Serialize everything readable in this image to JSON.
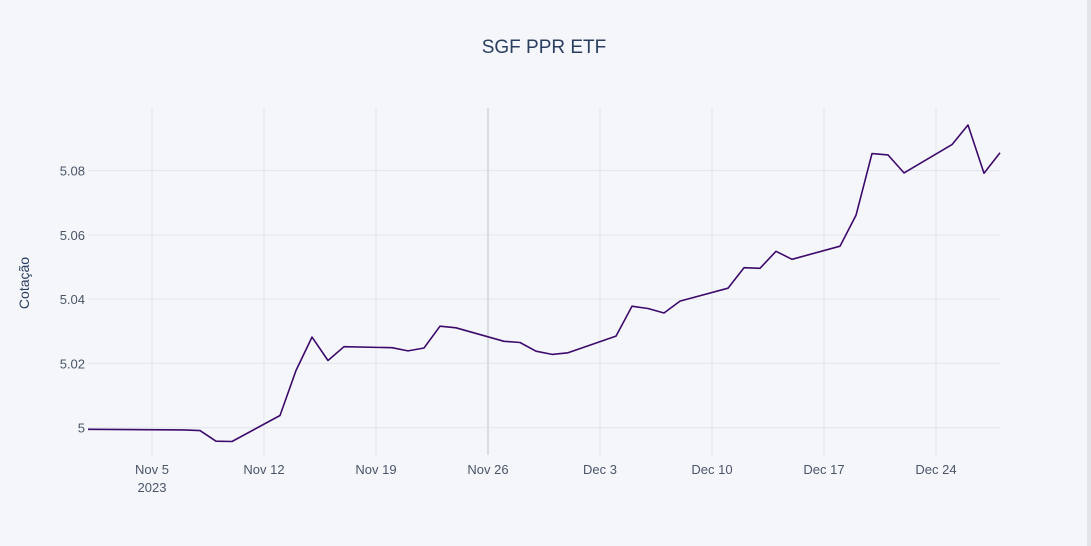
{
  "chart_data": {
    "type": "line",
    "title": "SGF PPR ETF",
    "xlabel": "",
    "ylabel": "Cotação",
    "x_tick_labels": [
      "Nov 5",
      "Nov 12",
      "Nov 19",
      "Nov 26",
      "Dec 3",
      "Dec 10",
      "Dec 17",
      "Dec 24"
    ],
    "x_tick_year_label": "2023",
    "x_tick_dates": [
      "2023-11-05",
      "2023-11-12",
      "2023-11-19",
      "2023-11-26",
      "2023-12-03",
      "2023-12-10",
      "2023-12-17",
      "2023-12-24"
    ],
    "y_tick_labels": [
      "5",
      "5.02",
      "5.04",
      "5.06",
      "5.08"
    ],
    "y_tick_values": [
      5.0,
      5.02,
      5.04,
      5.06,
      5.08
    ],
    "xlim": [
      "2023-11-01",
      "2023-12-28"
    ],
    "ylim": [
      4.9915,
      5.0995
    ],
    "grid": true,
    "legend": false,
    "line_color": "#3d0a6b",
    "series": [
      {
        "name": "",
        "x": [
          "2023-11-01",
          "2023-11-07",
          "2023-11-08",
          "2023-11-09",
          "2023-11-10",
          "2023-11-13",
          "2023-11-14",
          "2023-11-15",
          "2023-11-16",
          "2023-11-17",
          "2023-11-20",
          "2023-11-21",
          "2023-11-22",
          "2023-11-23",
          "2023-11-24",
          "2023-11-27",
          "2023-11-28",
          "2023-11-29",
          "2023-11-30",
          "2023-12-01",
          "2023-12-04",
          "2023-12-05",
          "2023-12-06",
          "2023-12-07",
          "2023-12-08",
          "2023-12-11",
          "2023-12-12",
          "2023-12-13",
          "2023-12-14",
          "2023-12-15",
          "2023-12-18",
          "2023-12-19",
          "2023-12-20",
          "2023-12-21",
          "2023-12-22",
          "2023-12-25",
          "2023-12-26",
          "2023-12-27",
          "2023-12-28"
        ],
        "values": [
          4.9995,
          4.9993,
          4.9991,
          4.9958,
          4.9957,
          5.0038,
          5.0178,
          5.0282,
          5.0209,
          5.0252,
          5.0249,
          5.0239,
          5.0248,
          5.0316,
          5.0311,
          5.0269,
          5.0265,
          5.0238,
          5.0228,
          5.0233,
          5.0285,
          5.0378,
          5.0371,
          5.0357,
          5.0394,
          5.0434,
          5.0498,
          5.0496,
          5.0549,
          5.0524,
          5.0565,
          5.0661,
          5.0853,
          5.0849,
          5.0793,
          5.0881,
          5.0942,
          5.0792,
          5.0856
        ]
      }
    ]
  }
}
